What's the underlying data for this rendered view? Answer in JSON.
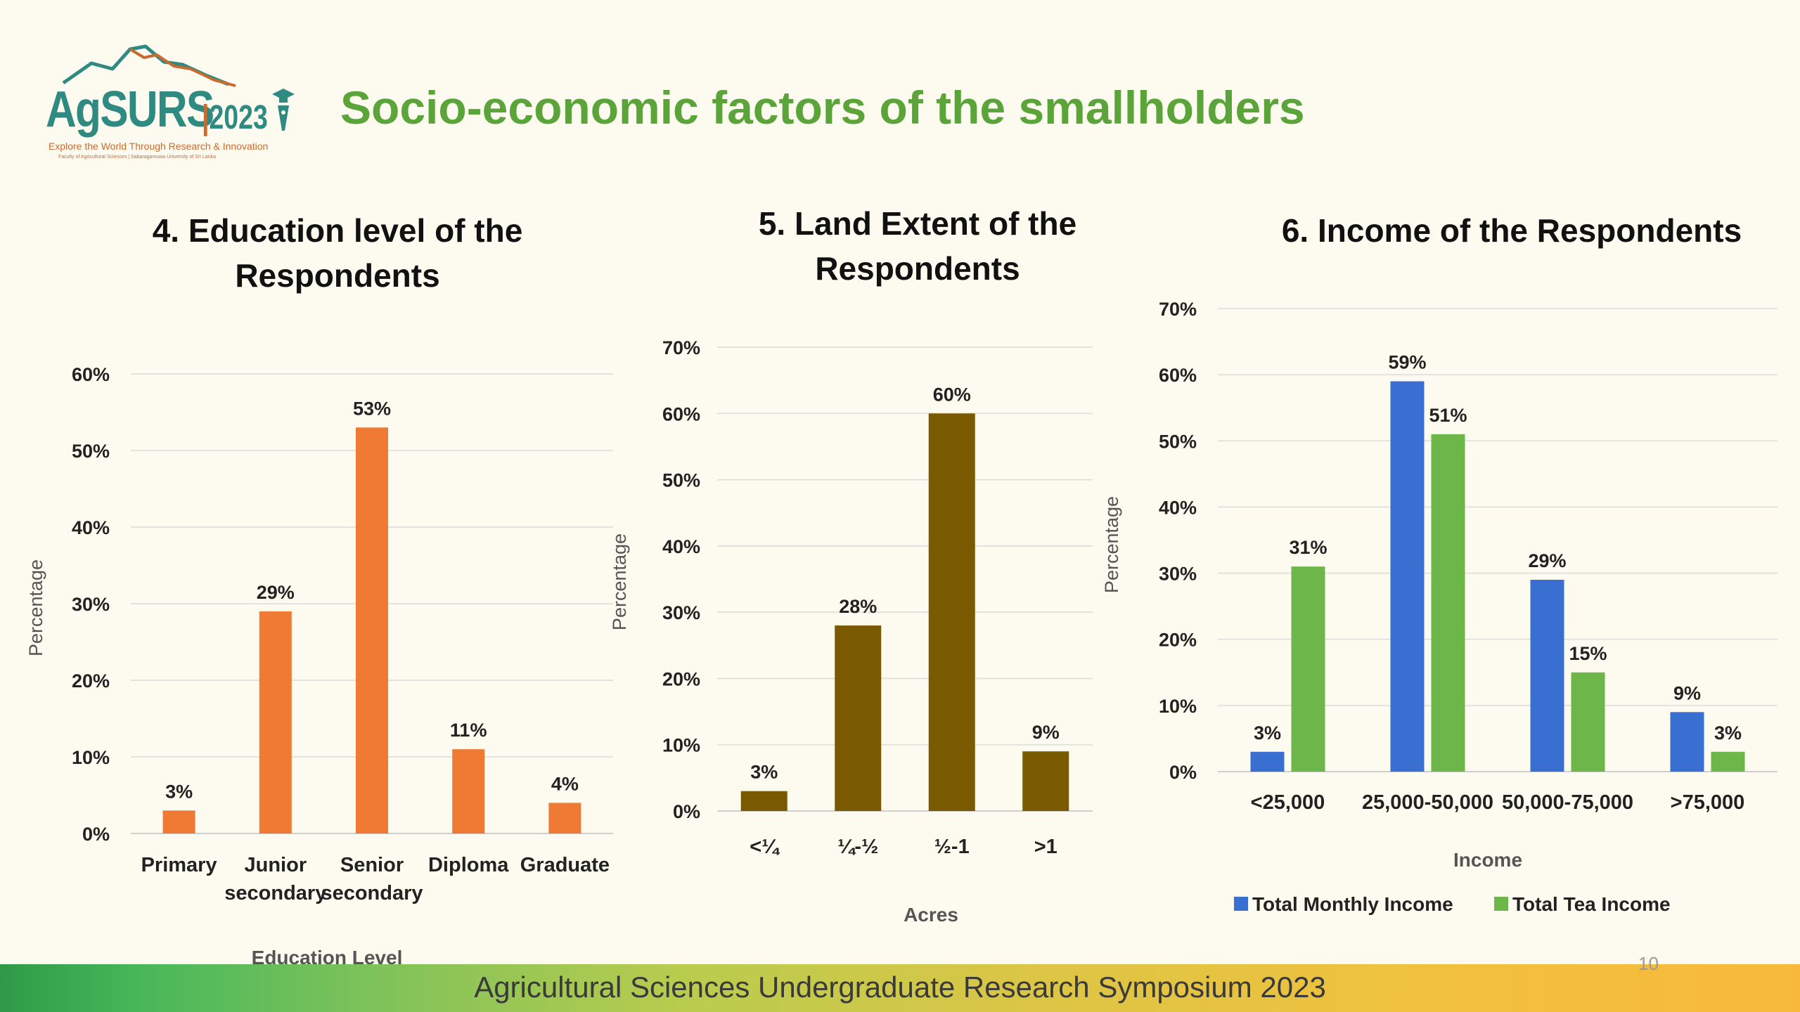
{
  "logo": {
    "name": "AgSURS",
    "year": "2023",
    "tagline": "Explore the World Through Research & Innovation",
    "subtitle": "Faculty of Agricultural Sciences | Sabaragamuwa University of Sri Lanka"
  },
  "page_title": "Socio-economic factors of the smallholders",
  "footer_text": "Agricultural Sciences Undergraduate Research Symposium 2023",
  "page_number": "10",
  "colors": {
    "title_green": "#5aa43a",
    "education_bar": "#ee7a33",
    "land_bar": "#7a5a00",
    "monthly_income": "#3a6fd2",
    "tea_income": "#6cb64a"
  },
  "chart_data": [
    {
      "type": "bar",
      "title": "4. Education level of the Respondents",
      "xlabel": "Education Level",
      "ylabel": "Percentage",
      "ylim": [
        0,
        60
      ],
      "y_ticks": [
        "0%",
        "10%",
        "20%",
        "30%",
        "40%",
        "50%",
        "60%"
      ],
      "categories": [
        [
          "Primary"
        ],
        [
          "Junior",
          "secondary"
        ],
        [
          "Senior",
          "secondary"
        ],
        [
          "Diploma"
        ],
        [
          "Graduate"
        ]
      ],
      "values": [
        3,
        29,
        53,
        11,
        4
      ],
      "value_labels": [
        "3%",
        "29%",
        "53%",
        "11%",
        "4%"
      ],
      "grid": true
    },
    {
      "type": "bar",
      "title": "5. Land Extent of the Respondents",
      "xlabel": "Acres",
      "ylabel": "Percentage",
      "ylim": [
        0,
        70
      ],
      "y_ticks": [
        "0%",
        "10%",
        "20%",
        "30%",
        "40%",
        "50%",
        "60%",
        "70%"
      ],
      "categories": [
        "<¼",
        "¼-½",
        "½-1",
        ">1"
      ],
      "values": [
        3,
        28,
        60,
        9
      ],
      "value_labels": [
        "3%",
        "28%",
        "60%",
        "9%"
      ],
      "grid": true
    },
    {
      "type": "bar",
      "title": "6. Income of the Respondents",
      "xlabel": "Income",
      "ylabel": "Percentage",
      "ylim": [
        0,
        70
      ],
      "y_ticks": [
        "0%",
        "10%",
        "20%",
        "30%",
        "40%",
        "50%",
        "60%",
        "70%"
      ],
      "categories": [
        "<25,000",
        "25,000-50,000",
        "50,000-75,000",
        ">75,000"
      ],
      "series": [
        {
          "name": "Total Monthly Income",
          "values": [
            3,
            59,
            29,
            9
          ],
          "value_labels": [
            "3%",
            "59%",
            "29%",
            "9%"
          ]
        },
        {
          "name": "Total Tea Income",
          "values": [
            31,
            51,
            15,
            3
          ],
          "value_labels": [
            "31%",
            "51%",
            "15%",
            "3%"
          ]
        }
      ],
      "legend": "bottom",
      "grid": true
    }
  ]
}
